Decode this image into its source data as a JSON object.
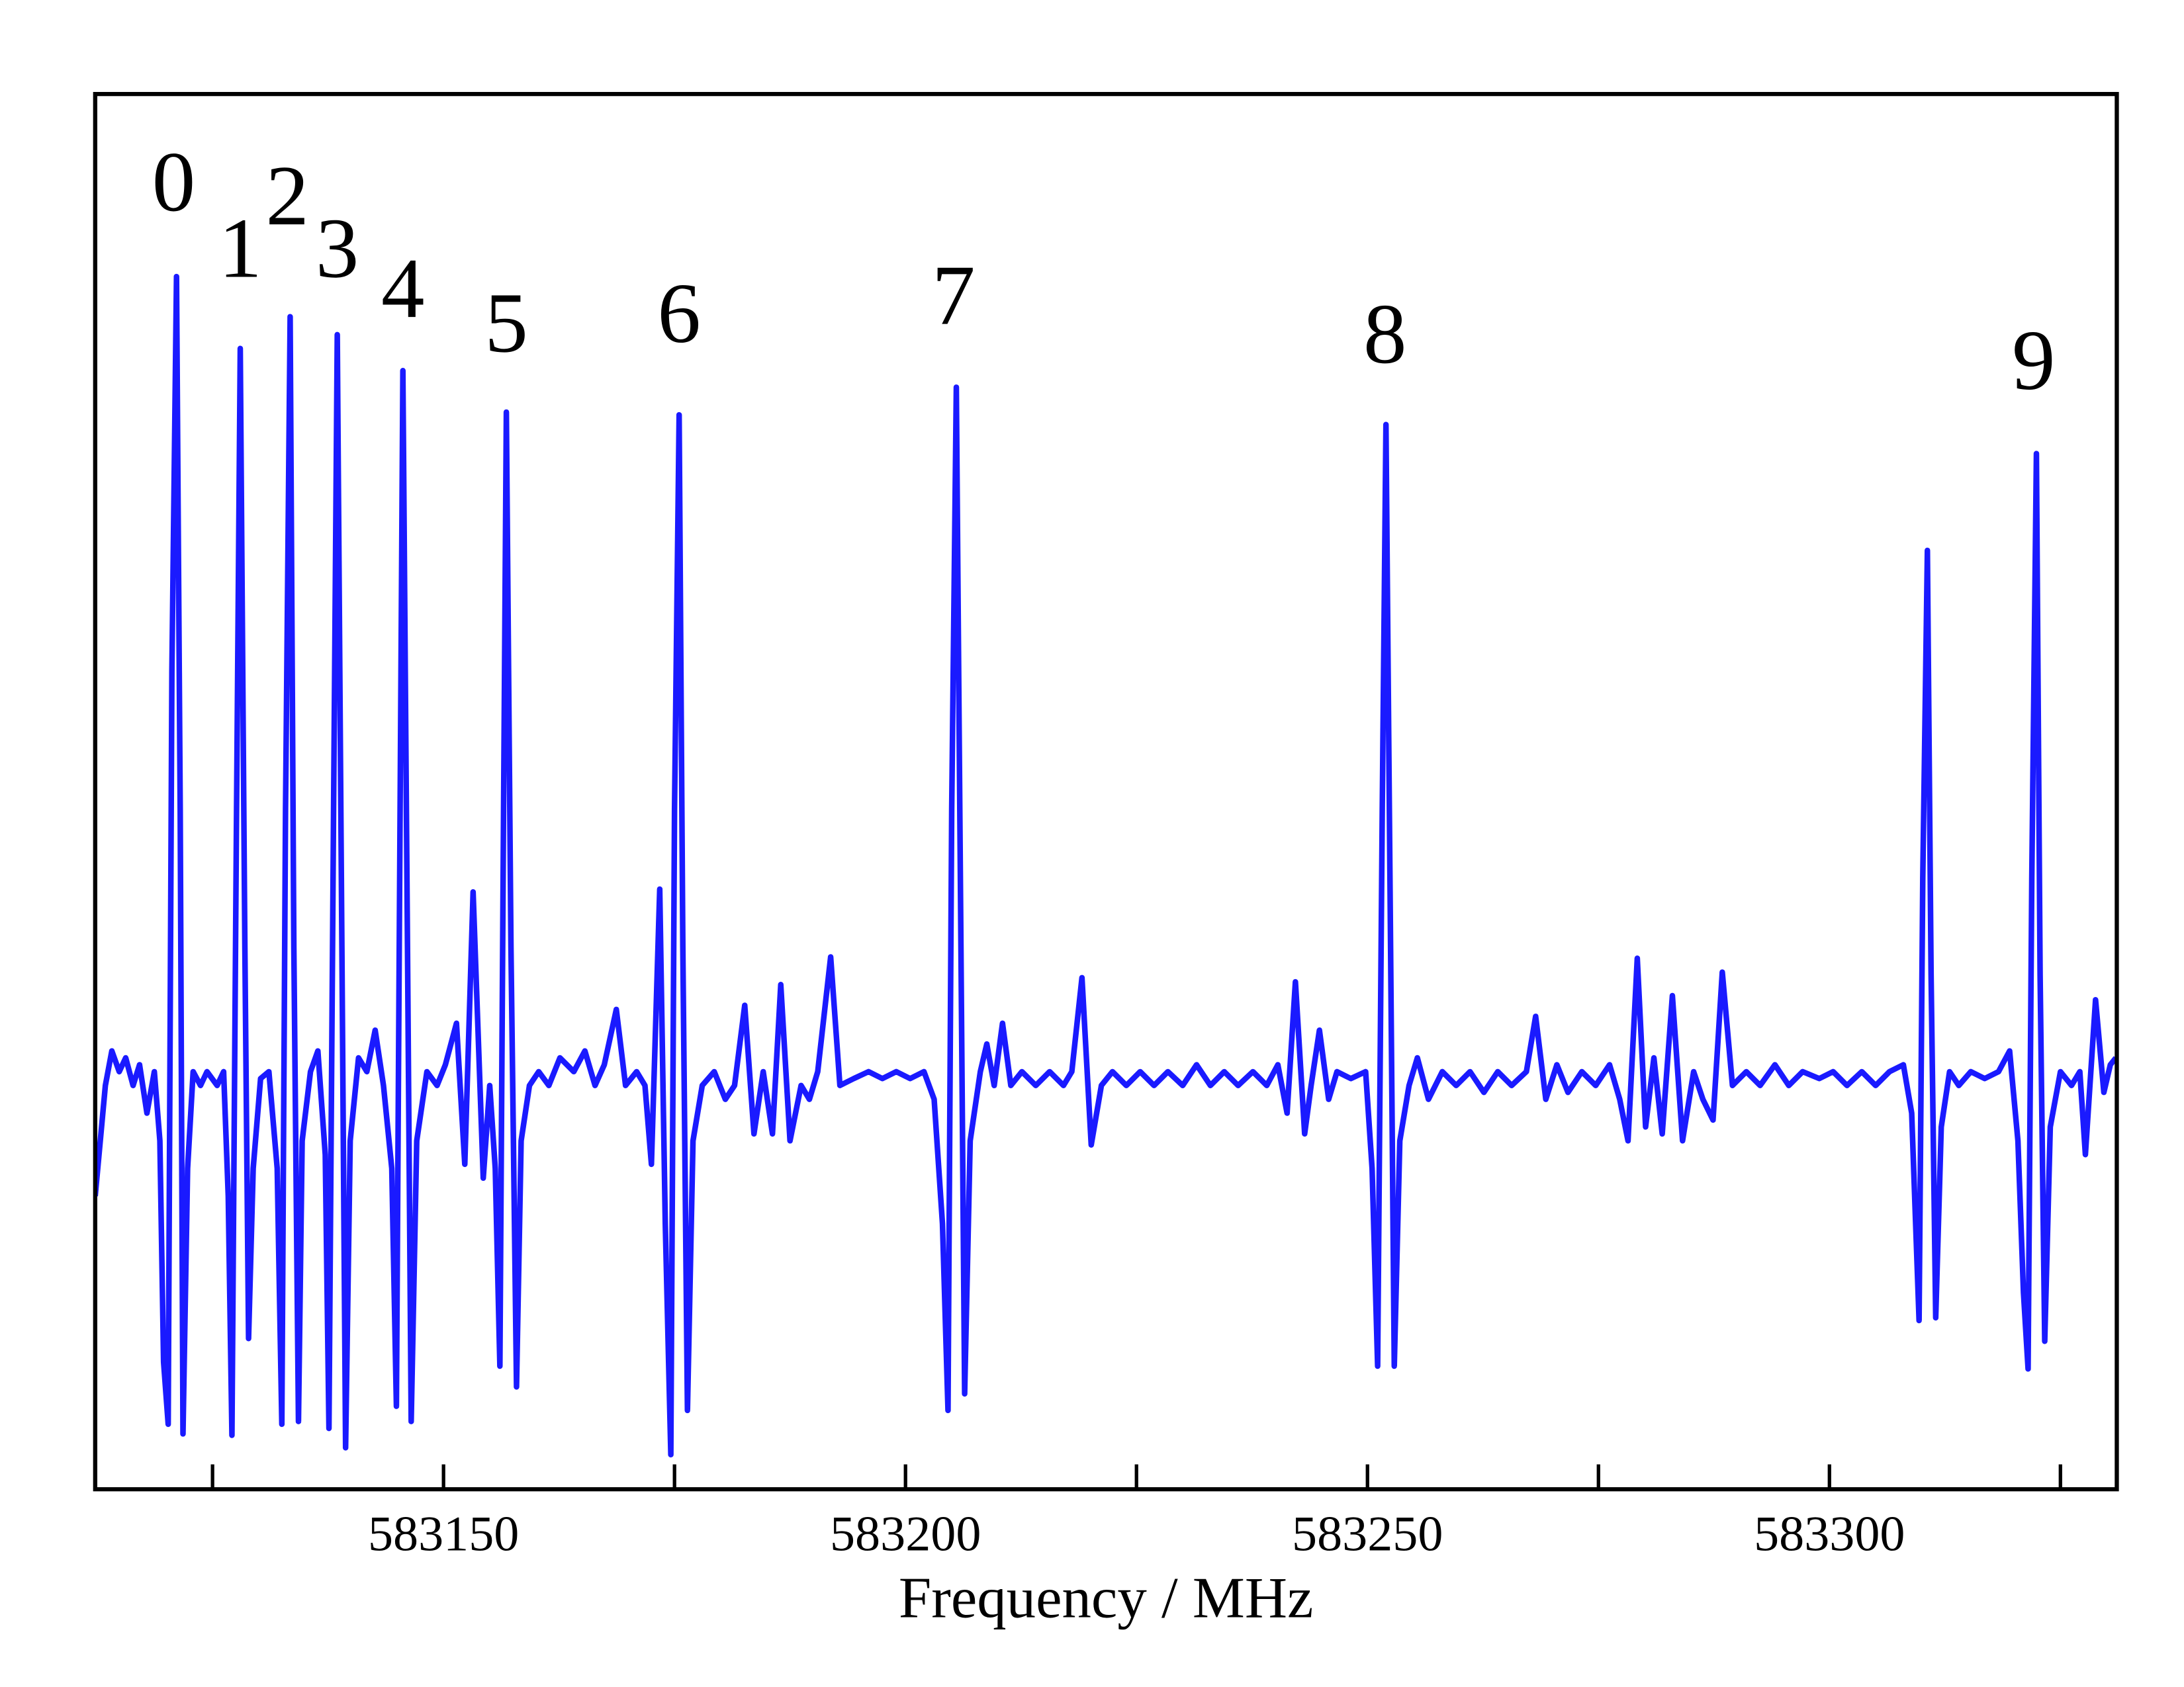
{
  "chart_data": {
    "type": "line",
    "xlabel": "Frequency / MHz",
    "xlim": [
      583112.3,
      583331.1
    ],
    "ylim": [
      -292,
      717
    ],
    "xticks": [
      583150,
      583200,
      583250,
      583300
    ],
    "xminorticks": [
      583125,
      583175,
      583225,
      583275,
      583325
    ],
    "color": "#1a1aff",
    "x": [
      583112.3,
      583113.4,
      583114.1,
      583114.9,
      583115.6,
      583116.4,
      583117.1,
      583117.9,
      583118.7,
      583119.3,
      583119.7,
      583120.2,
      583120.6,
      583121.1,
      583121.5,
      583121.8,
      583122.3,
      583122.9,
      583123.7,
      583124.4,
      583125.5,
      583126.2,
      583126.7,
      583127.1,
      583127.6,
      583128.0,
      583128.5,
      583128.9,
      583129.4,
      583130.2,
      583131.1,
      583132.0,
      583132.5,
      583132.9,
      583133.4,
      583133.8,
      583134.3,
      583134.7,
      583135.6,
      583136.4,
      583137.2,
      583137.6,
      583138.1,
      583138.5,
      583139.0,
      583139.4,
      583139.9,
      583140.8,
      583141.7,
      583142.6,
      583143.5,
      583144.4,
      583144.9,
      583145.3,
      583145.6,
      583146.1,
      583146.5,
      583147.1,
      583148.2,
      583149.3,
      583150.2,
      583151.4,
      583152.3,
      583153.2,
      583154.3,
      583155.0,
      583155.6,
      583156.1,
      583156.5,
      583156.8,
      583157.3,
      583157.9,
      583158.4,
      583159.3,
      583160.3,
      583161.4,
      583162.6,
      583164.1,
      583165.3,
      583166.4,
      583167.4,
      583168.7,
      583169.7,
      583170.9,
      583171.8,
      583172.5,
      583173.4,
      583174.0,
      583174.6,
      583175.0,
      583175.5,
      583175.9,
      583176.4,
      583177.0,
      583178.0,
      583179.3,
      583180.5,
      583181.5,
      583182.6,
      583183.6,
      583184.6,
      583185.6,
      583186.5,
      583187.5,
      583188.7,
      583189.6,
      583190.5,
      583191.9,
      583192.9,
      583194.4,
      583196.0,
      583197.5,
      583199.0,
      583200.5,
      583202.0,
      583203.1,
      583204.0,
      583204.6,
      583205.0,
      583205.5,
      583206.0,
      583206.4,
      583207.0,
      583208.1,
      583208.8,
      583209.6,
      583210.5,
      583211.4,
      583212.6,
      583214.1,
      583215.6,
      583217.1,
      583218.0,
      583219.1,
      583220.1,
      583221.2,
      583222.4,
      583223.9,
      583225.4,
      583226.9,
      583228.4,
      583230.0,
      583231.5,
      583233.0,
      583234.5,
      583236.0,
      583237.6,
      583239.1,
      583240.3,
      583241.3,
      583242.2,
      583243.2,
      583243.9,
      583244.8,
      583245.8,
      583246.7,
      583248.2,
      583249.8,
      583250.5,
      583251.1,
      583251.6,
      583252.0,
      583252.5,
      583252.9,
      583253.5,
      583254.5,
      583255.4,
      583256.6,
      583258.1,
      583259.6,
      583261.1,
      583262.6,
      583264.1,
      583265.6,
      583267.2,
      583268.2,
      583269.3,
      583270.5,
      583271.7,
      583273.2,
      583274.7,
      583276.2,
      583277.3,
      583278.2,
      583279.2,
      583280.1,
      583281.0,
      583281.9,
      583283.0,
      583284.1,
      583285.3,
      583286.3,
      583287.4,
      583288.4,
      583289.5,
      583291.0,
      583292.5,
      583294.1,
      583295.6,
      583297.1,
      583298.9,
      583300.4,
      583301.9,
      583303.5,
      583305.0,
      583306.5,
      583308.0,
      583308.9,
      583309.7,
      583310.1,
      583310.6,
      583311.0,
      583311.5,
      583312.1,
      583313.0,
      583314.0,
      583315.3,
      583316.8,
      583318.3,
      583319.5,
      583320.4,
      583321.0,
      583321.5,
      583321.9,
      583322.4,
      583322.8,
      583323.3,
      583323.9,
      583325.0,
      583326.2,
      583327.1,
      583327.7,
      583328.8,
      583329.7,
      583330.4,
      583331.0
    ],
    "values": [
      -80,
      0,
      25,
      10,
      20,
      0,
      15,
      -20,
      10,
      -40,
      -200,
      -245,
      300,
      585,
      200,
      -252,
      -60,
      10,
      0,
      10,
      0,
      10,
      -80,
      -253,
      200,
      533,
      100,
      -183,
      -60,
      5,
      10,
      -60,
      -245,
      200,
      556,
      100,
      -243,
      -40,
      10,
      25,
      -50,
      -248,
      200,
      543,
      100,
      -262,
      -40,
      20,
      10,
      40,
      0,
      -60,
      -232,
      200,
      517,
      100,
      -243,
      -40,
      10,
      0,
      15,
      45,
      -57,
      140,
      -67,
      0,
      -60,
      -203,
      200,
      487,
      100,
      -218,
      -40,
      0,
      10,
      0,
      20,
      10,
      25,
      0,
      15,
      55,
      0,
      10,
      0,
      -57,
      142,
      -100,
      -267,
      200,
      485,
      100,
      -235,
      -40,
      0,
      10,
      -10,
      0,
      58,
      -35,
      10,
      -35,
      73,
      -40,
      0,
      -10,
      10,
      93,
      0,
      5,
      10,
      5,
      10,
      5,
      10,
      -10,
      -100,
      -235,
      200,
      505,
      100,
      -223,
      -40,
      10,
      30,
      0,
      45,
      0,
      10,
      0,
      10,
      0,
      10,
      78,
      -43,
      0,
      10,
      0,
      10,
      0,
      10,
      0,
      15,
      0,
      10,
      0,
      10,
      0,
      15,
      -20,
      75,
      -35,
      0,
      40,
      -10,
      10,
      5,
      10,
      -60,
      -203,
      200,
      478,
      100,
      -203,
      -40,
      0,
      20,
      -10,
      10,
      0,
      10,
      -5,
      10,
      0,
      10,
      50,
      -10,
      15,
      -5,
      10,
      0,
      15,
      -10,
      -40,
      92,
      -30,
      20,
      -35,
      65,
      -40,
      10,
      -10,
      -25,
      82,
      0,
      10,
      0,
      15,
      0,
      10,
      5,
      10,
      0,
      10,
      0,
      10,
      15,
      -20,
      -170,
      150,
      387,
      80,
      -168,
      -30,
      10,
      0,
      10,
      5,
      10,
      25,
      -40,
      -150,
      -205,
      150,
      457,
      80,
      -185,
      -30,
      10,
      0,
      10,
      -50,
      62,
      -5,
      15,
      20
    ],
    "annotations": [
      {
        "text": "0",
        "x": 583120.8,
        "y": 647
      },
      {
        "text": "1",
        "x": 583128.0,
        "y": 599
      },
      {
        "text": "2",
        "x": 583133.1,
        "y": 637
      },
      {
        "text": "3",
        "x": 583138.5,
        "y": 599
      },
      {
        "text": "4",
        "x": 583145.6,
        "y": 570
      },
      {
        "text": "5",
        "x": 583156.8,
        "y": 545
      },
      {
        "text": "6",
        "x": 583175.5,
        "y": 552
      },
      {
        "text": "7",
        "x": 583205.2,
        "y": 565
      },
      {
        "text": "8",
        "x": 583251.9,
        "y": 537
      },
      {
        "text": "9",
        "x": 583322.1,
        "y": 518
      }
    ]
  }
}
